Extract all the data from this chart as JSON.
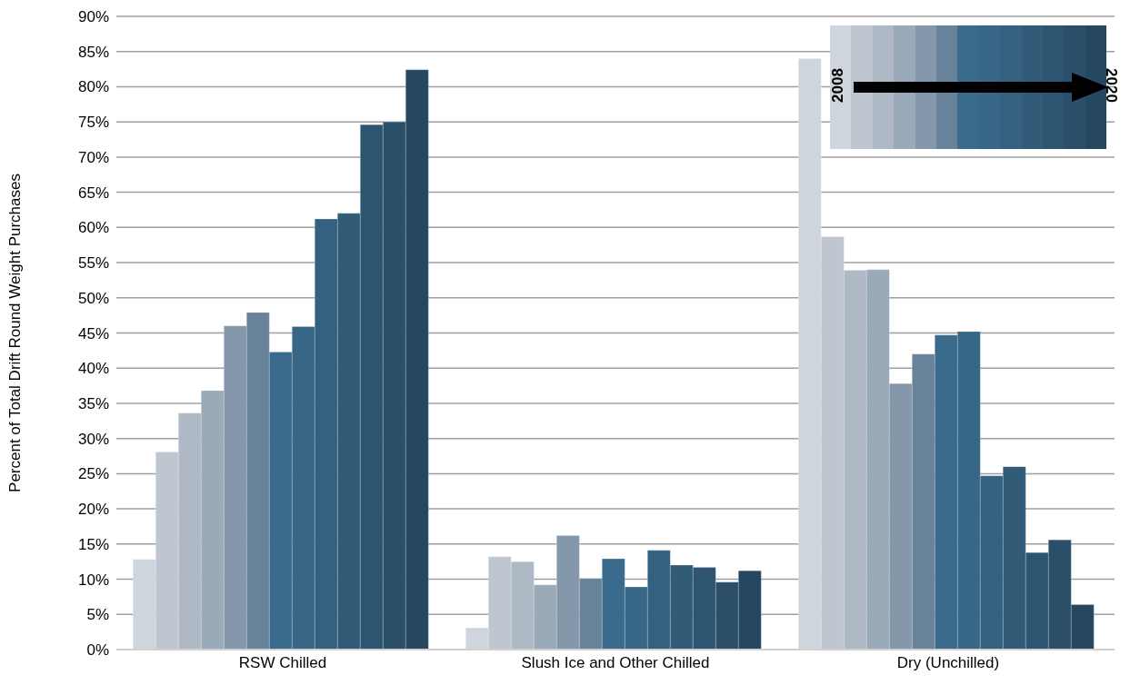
{
  "chart_data": {
    "type": "bar",
    "ylabel": "Percent of Total Drift Round Weight Purchases",
    "categories": [
      "RSW Chilled",
      "Slush Ice and Other Chilled",
      "Dry (Unchilled)"
    ],
    "series": [
      {
        "color": "#cfd5dc",
        "values": [
          12.8,
          3.1,
          84
        ]
      },
      {
        "color": "#bfc6d0",
        "values": [
          28.1,
          13.2,
          58.7
        ]
      },
      {
        "color": "#afb9c6",
        "values": [
          33.6,
          12.5,
          53.9
        ]
      },
      {
        "color": "#9aaab9",
        "values": [
          36.8,
          9.2,
          54
        ]
      },
      {
        "color": "#8497ab",
        "values": [
          46,
          16.2,
          37.8
        ]
      },
      {
        "color": "#688399",
        "values": [
          47.9,
          10.1,
          42
        ]
      },
      {
        "color": "#3b6b8c",
        "values": [
          42.3,
          12.9,
          44.7
        ]
      },
      {
        "color": "#386686",
        "values": [
          45.9,
          8.9,
          45.2
        ]
      },
      {
        "color": "#356180",
        "values": [
          61.2,
          14.1,
          24.7
        ]
      },
      {
        "color": "#325b77",
        "values": [
          62,
          12,
          26
        ]
      },
      {
        "color": "#2e5570",
        "values": [
          74.6,
          11.7,
          13.8
        ]
      },
      {
        "color": "#2b4f69",
        "values": [
          75,
          9.6,
          15.6
        ]
      },
      {
        "color": "#254760",
        "values": [
          82.4,
          11.2,
          6.4
        ]
      }
    ],
    "ylim": [
      0,
      90
    ],
    "yticks": [
      {
        "value": 0,
        "label": "0%"
      },
      {
        "value": 5,
        "label": "5%"
      },
      {
        "value": 10,
        "label": "10%"
      },
      {
        "value": 15,
        "label": "15%"
      },
      {
        "value": 20,
        "label": "20%"
      },
      {
        "value": 25,
        "label": "25%"
      },
      {
        "value": 30,
        "label": "30%"
      },
      {
        "value": 35,
        "label": "35%"
      },
      {
        "value": 40,
        "label": "40%"
      },
      {
        "value": 45,
        "label": "45%"
      },
      {
        "value": 50,
        "label": "50%"
      },
      {
        "value": 55,
        "label": "55%"
      },
      {
        "value": 60,
        "label": "60%"
      },
      {
        "value": 65,
        "label": "65%"
      },
      {
        "value": 70,
        "label": "70%"
      },
      {
        "value": 75,
        "label": "75%"
      },
      {
        "value": 80,
        "label": "80%"
      },
      {
        "value": 85,
        "label": "85%"
      },
      {
        "value": 90,
        "label": "90%"
      }
    ],
    "grid": "y",
    "annotations": [
      "2008",
      "2020"
    ]
  }
}
